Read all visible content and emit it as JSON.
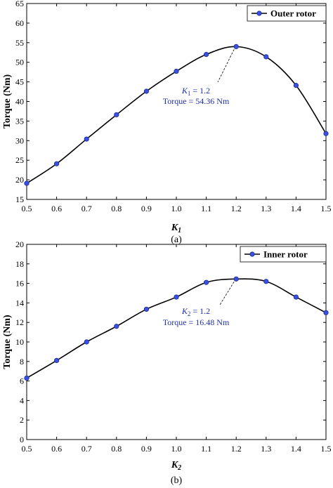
{
  "colors": {
    "line": "#000000",
    "marker_fill": "#3b4fe0",
    "marker_stroke": "#1a2a9a",
    "annotation": "#1f2fa8"
  },
  "chart_data": [
    {
      "type": "line",
      "panel_label": "(a)",
      "xlabel_main": "K",
      "xlabel_sub": "1",
      "ylabel": "Torque (Nm)",
      "xlim": [
        0.5,
        1.5
      ],
      "ylim": [
        15,
        65
      ],
      "xticks": [
        "0.5",
        "0.6",
        "0.7",
        "0.8",
        "0.9",
        "1.0",
        "1.1",
        "1.2",
        "1.3",
        "1.4",
        "1.5"
      ],
      "yticks": [
        "15",
        "20",
        "25",
        "30",
        "35",
        "40",
        "45",
        "50",
        "55",
        "60",
        "65"
      ],
      "legend_position": "top-right",
      "series": [
        {
          "name": "Outer rotor",
          "x": [
            0.5,
            0.6,
            0.7,
            0.8,
            0.9,
            1.0,
            1.1,
            1.2,
            1.3,
            1.4,
            1.5
          ],
          "y": [
            19.1,
            24.1,
            30.4,
            36.6,
            42.6,
            47.7,
            52.0,
            54.0,
            51.4,
            44.1,
            31.8
          ]
        }
      ],
      "annotation": {
        "k_main": "K",
        "k_sub": "1",
        "k_value": " = 1.2",
        "torque_text": "Torque = 54.36 Nm",
        "x": 1.2,
        "y": 54.0
      }
    },
    {
      "type": "line",
      "panel_label": "(b)",
      "xlabel_main": "K",
      "xlabel_sub": "2",
      "ylabel": "Torque (Nm)",
      "xlim": [
        0.5,
        1.5
      ],
      "ylim": [
        0,
        20
      ],
      "xticks": [
        "0.5",
        "0.6",
        "0.7",
        "0.8",
        "0.9",
        "1.0",
        "1.1",
        "1.2",
        "1.3",
        "1.4",
        "1.5"
      ],
      "yticks": [
        "0",
        "2",
        "4",
        "6",
        "8",
        "10",
        "12",
        "14",
        "16",
        "18",
        "20"
      ],
      "legend_position": "top-right",
      "series": [
        {
          "name": "Inner rotor",
          "x": [
            0.5,
            0.6,
            0.7,
            0.8,
            0.9,
            1.0,
            1.1,
            1.2,
            1.3,
            1.4,
            1.5
          ],
          "y": [
            6.3,
            8.1,
            10.0,
            11.6,
            13.35,
            14.6,
            16.1,
            16.45,
            16.2,
            14.6,
            13.0
          ]
        }
      ],
      "annotation": {
        "k_main": "K",
        "k_sub": "2",
        "k_value": " = 1.2",
        "torque_text": "Torque = 16.48 Nm",
        "x": 1.2,
        "y": 16.45
      }
    }
  ]
}
